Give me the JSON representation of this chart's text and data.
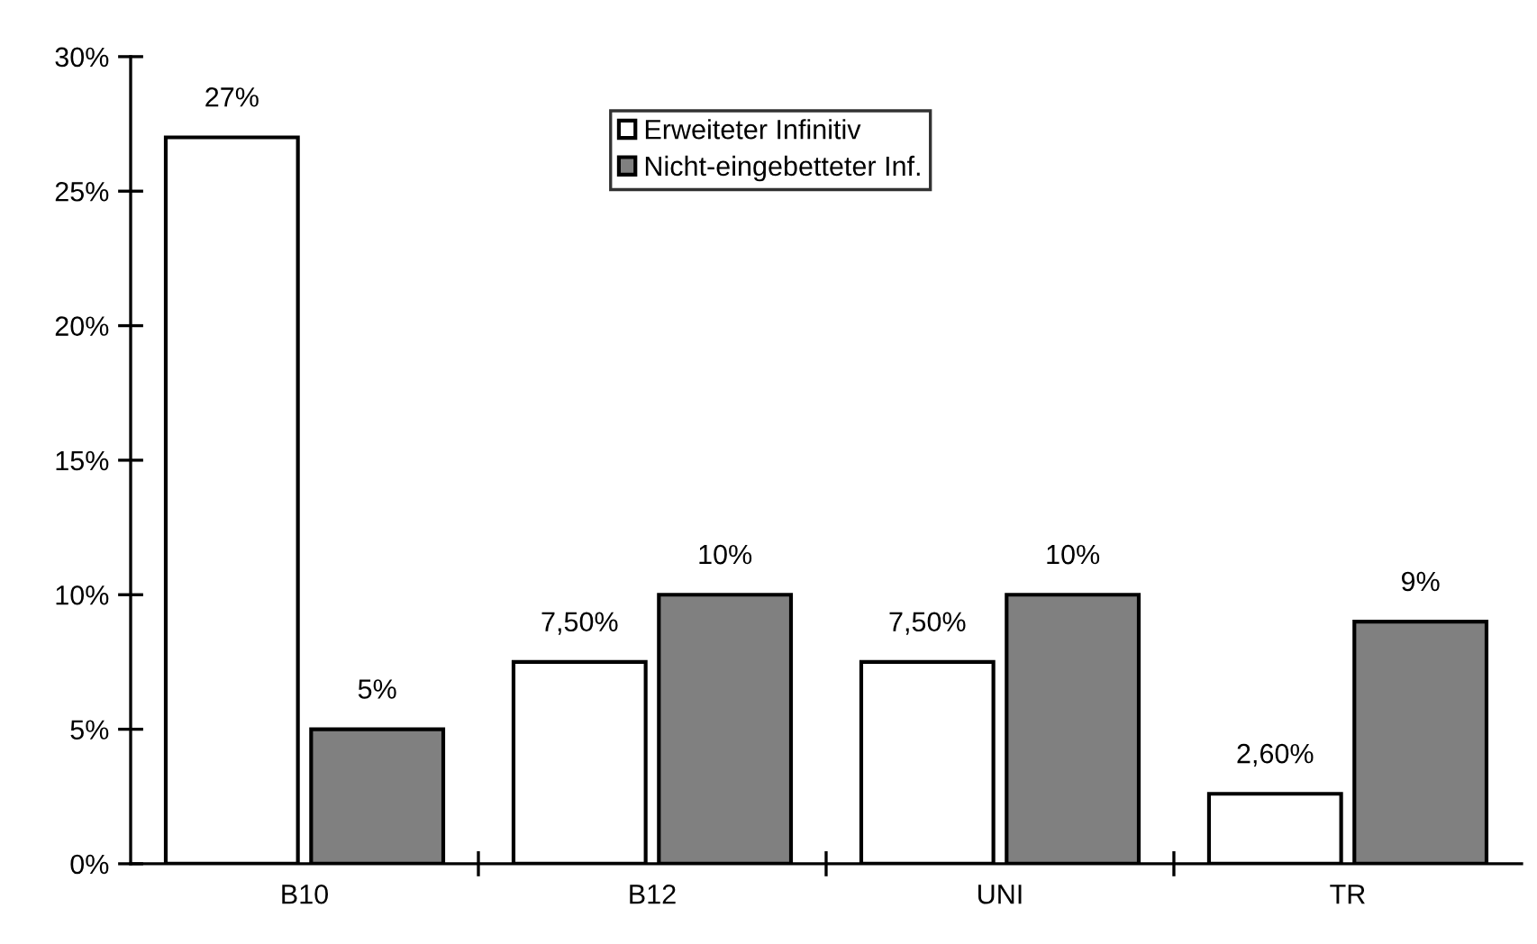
{
  "chart_data": {
    "type": "bar",
    "categories": [
      "B10",
      "B12",
      "UNI",
      "TR"
    ],
    "series": [
      {
        "name": "Erweiteter Infinitiv",
        "color": "#ffffff",
        "values": [
          27,
          7.5,
          7.5,
          2.6
        ],
        "value_labels": [
          "27%",
          "7,50%",
          "7,50%",
          "2,60%"
        ]
      },
      {
        "name": "Nicht-eingebetteter Inf.",
        "color": "#808080",
        "values": [
          5,
          10,
          10,
          9
        ],
        "value_labels": [
          "5%",
          "10%",
          "10%",
          "9%"
        ]
      }
    ],
    "ylim": [
      0,
      30
    ],
    "yticks": [
      {
        "value": 0,
        "label": "0%"
      },
      {
        "value": 5,
        "label": "5%"
      },
      {
        "value": 10,
        "label": "10%"
      },
      {
        "value": 15,
        "label": "15%"
      },
      {
        "value": 20,
        "label": "20%"
      },
      {
        "value": 25,
        "label": "25%"
      },
      {
        "value": 30,
        "label": "30%"
      }
    ],
    "grid": false,
    "legend": "top"
  }
}
